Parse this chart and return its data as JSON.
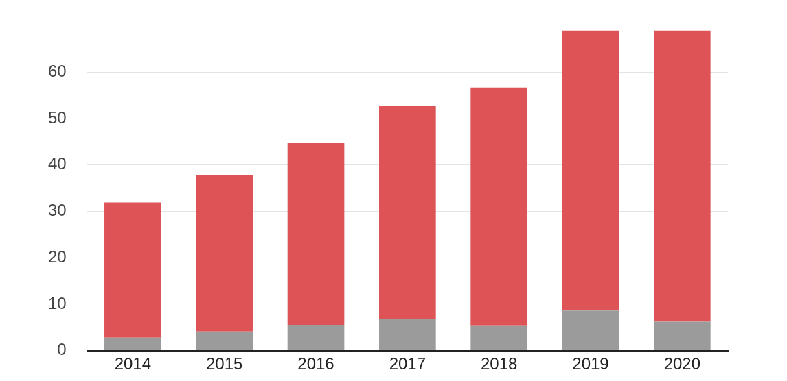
{
  "chart_data": {
    "type": "bar",
    "stacked": true,
    "categories": [
      "2014",
      "2015",
      "2016",
      "2017",
      "2018",
      "2019",
      "2020"
    ],
    "series": [
      {
        "color": "#9b9b9b",
        "values": [
          2.8,
          4.1,
          5.5,
          6.8,
          5.3,
          8.6,
          6.2
        ]
      },
      {
        "color": "#de5356",
        "values": [
          29.1,
          33.8,
          39.2,
          46.0,
          51.4,
          60.4,
          62.8
        ]
      }
    ],
    "ylim": [
      0,
      69
    ],
    "yticks": [
      0,
      10,
      20,
      30,
      40,
      50,
      60
    ],
    "grid": "y",
    "legend": false
  }
}
